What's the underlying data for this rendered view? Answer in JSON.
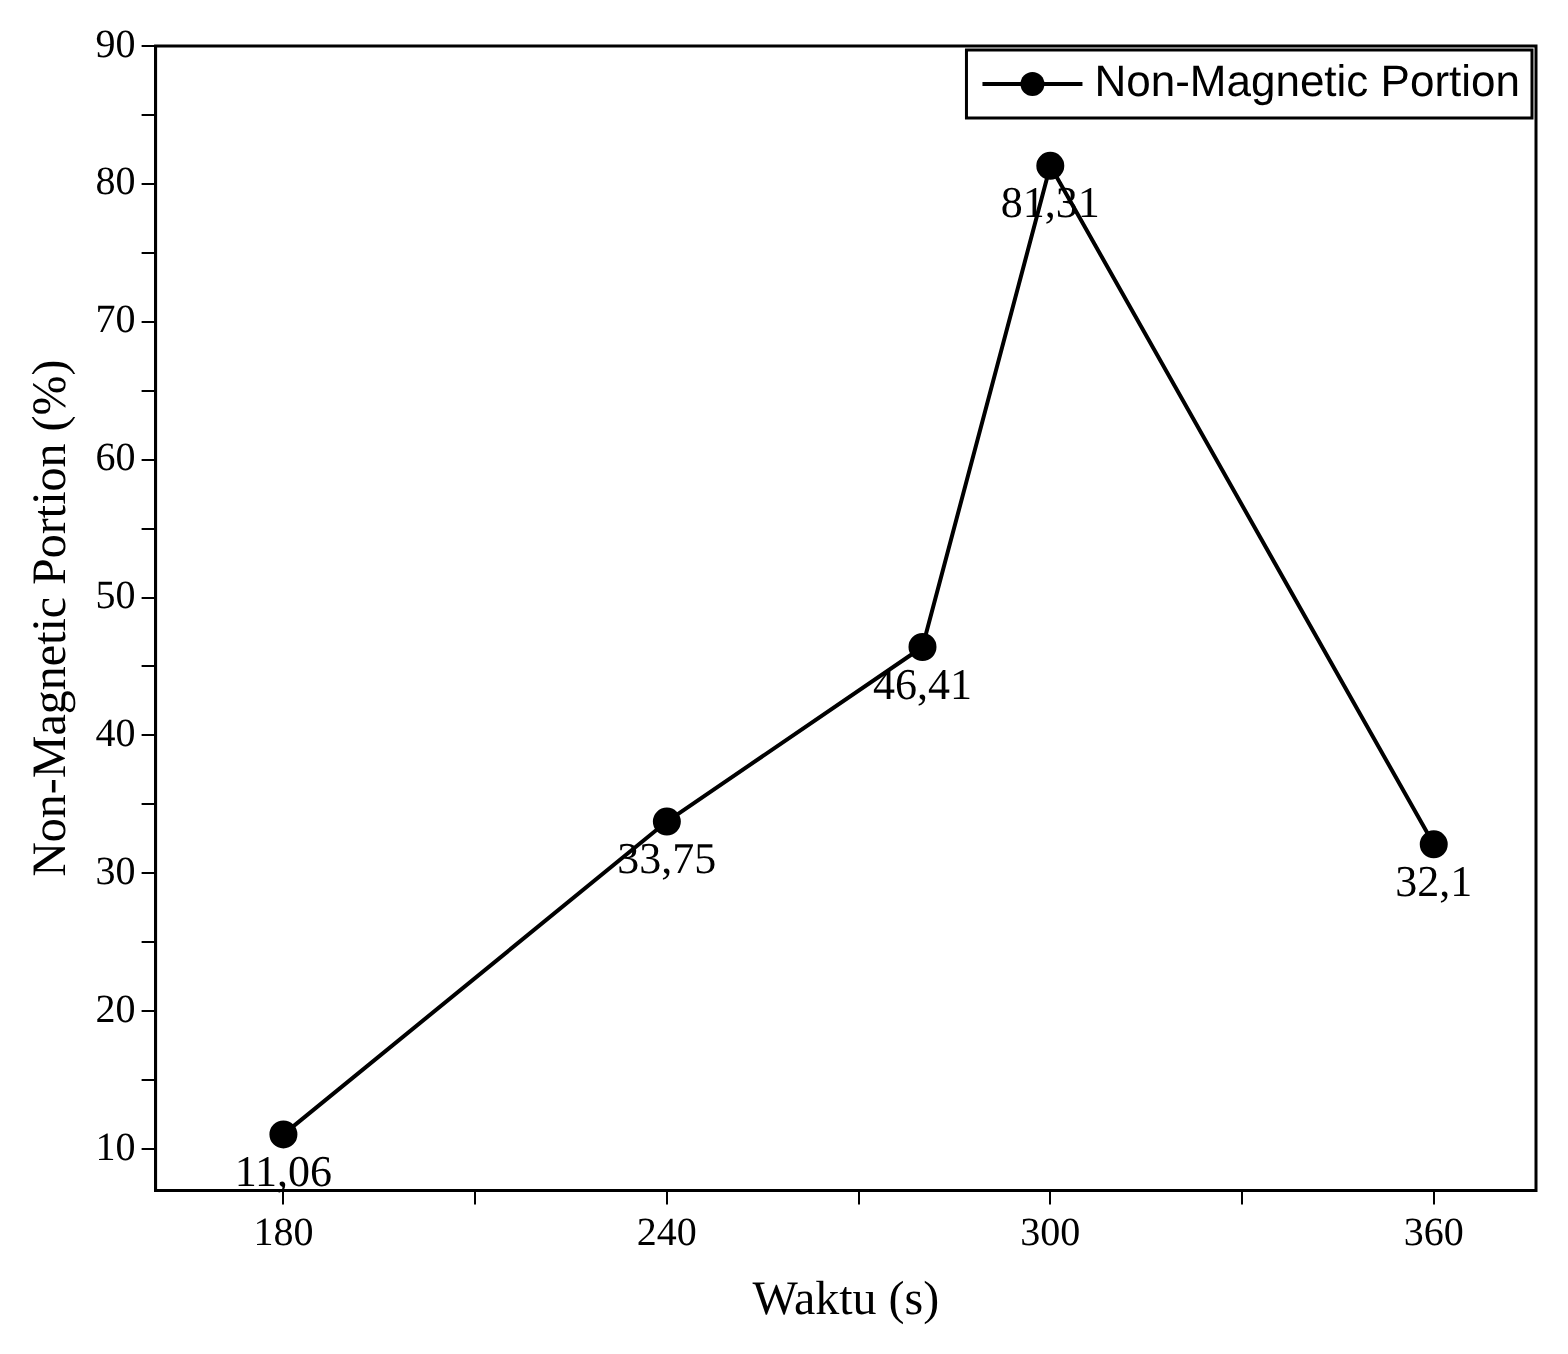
{
  "chart_data": {
    "type": "line",
    "xlabel": "Waktu (s)",
    "ylabel": "Non-Magnetic Portion (%)",
    "x": [
      180,
      240,
      280,
      300,
      360
    ],
    "series": [
      {
        "name": "Non-Magnetic Portion",
        "color": "#000000",
        "values": [
          11.06,
          33.75,
          46.41,
          81.31,
          32.1
        ],
        "value_labels": [
          "11,06",
          "33,75",
          "46,41",
          "81,31",
          "32,1"
        ]
      }
    ],
    "xlim": [
      160,
      376
    ],
    "xticks": [
      180,
      {
        "value": 210,
        "label": null
      },
      240,
      {
        "value": 270,
        "label": null
      },
      300,
      {
        "value": 330,
        "label": null
      },
      360
    ],
    "ylim": [
      7,
      90
    ],
    "yticks": [
      10,
      {
        "value": 15,
        "label": null
      },
      20,
      {
        "value": 25,
        "label": null
      },
      30,
      {
        "value": 35,
        "label": null
      },
      40,
      {
        "value": 45,
        "label": null
      },
      50,
      {
        "value": 55,
        "label": null
      },
      60,
      {
        "value": 65,
        "label": null
      },
      70,
      {
        "value": 75,
        "label": null
      },
      80,
      {
        "value": 85,
        "label": null
      },
      90
    ],
    "grid": false,
    "legend": "top right",
    "marker": "circle",
    "line_style": "solid"
  }
}
